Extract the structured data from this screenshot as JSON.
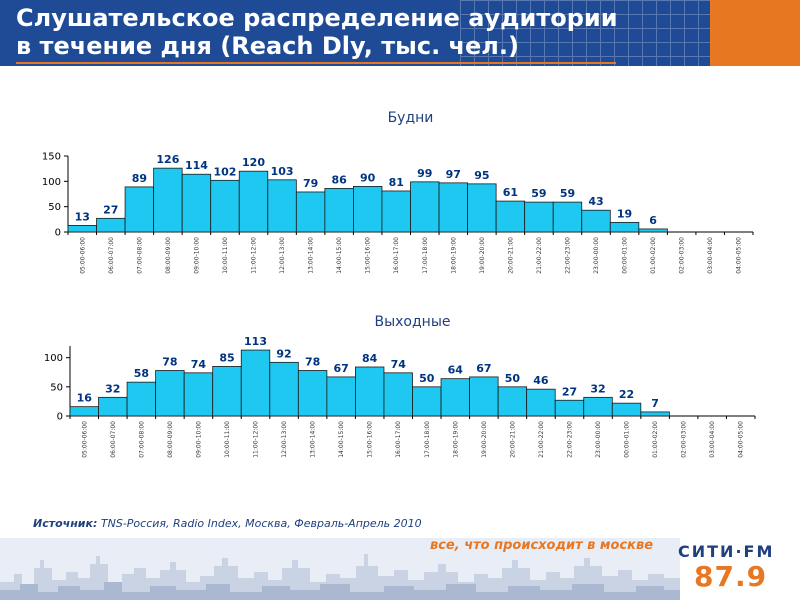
{
  "page": {
    "title": "Слушательское распределение аудитории\nв течение дня (Reach Dly, тыс. чел.)"
  },
  "chart_data": [
    {
      "type": "bar",
      "title": "Будни",
      "xlabel": "",
      "ylabel": "",
      "ylim": [
        0,
        150
      ],
      "yticks": [
        0,
        50,
        100,
        150
      ],
      "categories": [
        "05:00-06:00",
        "06:00-07:00",
        "07:00-08:00",
        "08:00-09:00",
        "09:00-10:00",
        "10:00-11:00",
        "11:00-12:00",
        "12:00-13:00",
        "13:00-14:00",
        "14:00-15:00",
        "15:00-16:00",
        "16:00-17:00",
        "17:00-18:00",
        "18:00-19:00",
        "19:00-20:00",
        "20:00-21:00",
        "21:00-22:00",
        "22:00-23:00",
        "23:00-00:00",
        "00:00-01:00",
        "01:00-02:00",
        "02:00-03:00",
        "03:00-04:00",
        "04:00-05:00"
      ],
      "values": [
        13,
        27,
        89,
        126,
        114,
        102,
        120,
        103,
        79,
        86,
        90,
        81,
        99,
        97,
        95,
        61,
        59,
        59,
        43,
        19,
        6,
        0,
        0,
        0
      ],
      "data_labels": [
        "13",
        "27",
        "89",
        "126",
        "114",
        "102",
        "120",
        "103",
        "79",
        "86",
        "90",
        "81",
        "99",
        "97",
        "95",
        "61",
        "59",
        "59",
        "43",
        "19",
        "6",
        "",
        "",
        ""
      ],
      "bar_color": "#1ec8f0",
      "grid": false,
      "legend": "none"
    },
    {
      "type": "bar",
      "title": "Выходные",
      "xlabel": "",
      "ylabel": "",
      "ylim": [
        0,
        120
      ],
      "yticks": [
        0,
        50,
        100
      ],
      "categories": [
        "05:00-06:00",
        "06:00-07:00",
        "07:00-08:00",
        "08:00-09:00",
        "09:00-10:00",
        "10:00-11:00",
        "11:00-12:00",
        "12:00-13:00",
        "13:00-14:00",
        "14:00-15:00",
        "15:00-16:00",
        "16:00-17:00",
        "17:00-18:00",
        "18:00-19:00",
        "19:00-20:00",
        "20:00-21:00",
        "21:00-22:00",
        "22:00-23:00",
        "23:00-00:00",
        "00:00-01:00",
        "01:00-02:00",
        "02:00-03:00",
        "03:00-04:00",
        "04:00-05:00"
      ],
      "values": [
        16,
        32,
        58,
        78,
        74,
        85,
        113,
        92,
        78,
        67,
        84,
        74,
        50,
        64,
        67,
        50,
        46,
        27,
        32,
        22,
        7,
        0,
        0,
        0
      ],
      "data_labels": [
        "16",
        "32",
        "58",
        "78",
        "74",
        "85",
        "113",
        "92",
        "78",
        "67",
        "84",
        "74",
        "50",
        "64",
        "67",
        "50",
        "46",
        "27",
        "32",
        "22",
        "7",
        "",
        "",
        ""
      ],
      "bar_color": "#1ec8f0",
      "grid": false,
      "legend": "none"
    }
  ],
  "source": {
    "label": "Источник:",
    "text": "TNS-Россия, Radio Index, Москва, Февраль-Апрель 2010"
  },
  "footer": {
    "slogan": "все, что происходит в москве",
    "logo_name": "СИТИ·FM",
    "logo_frequency": "87.9"
  },
  "colors": {
    "header_bg": "#1f4b96",
    "accent": "#e87722",
    "bar": "#1ec8f0",
    "title_text": "#1f3f7f"
  }
}
